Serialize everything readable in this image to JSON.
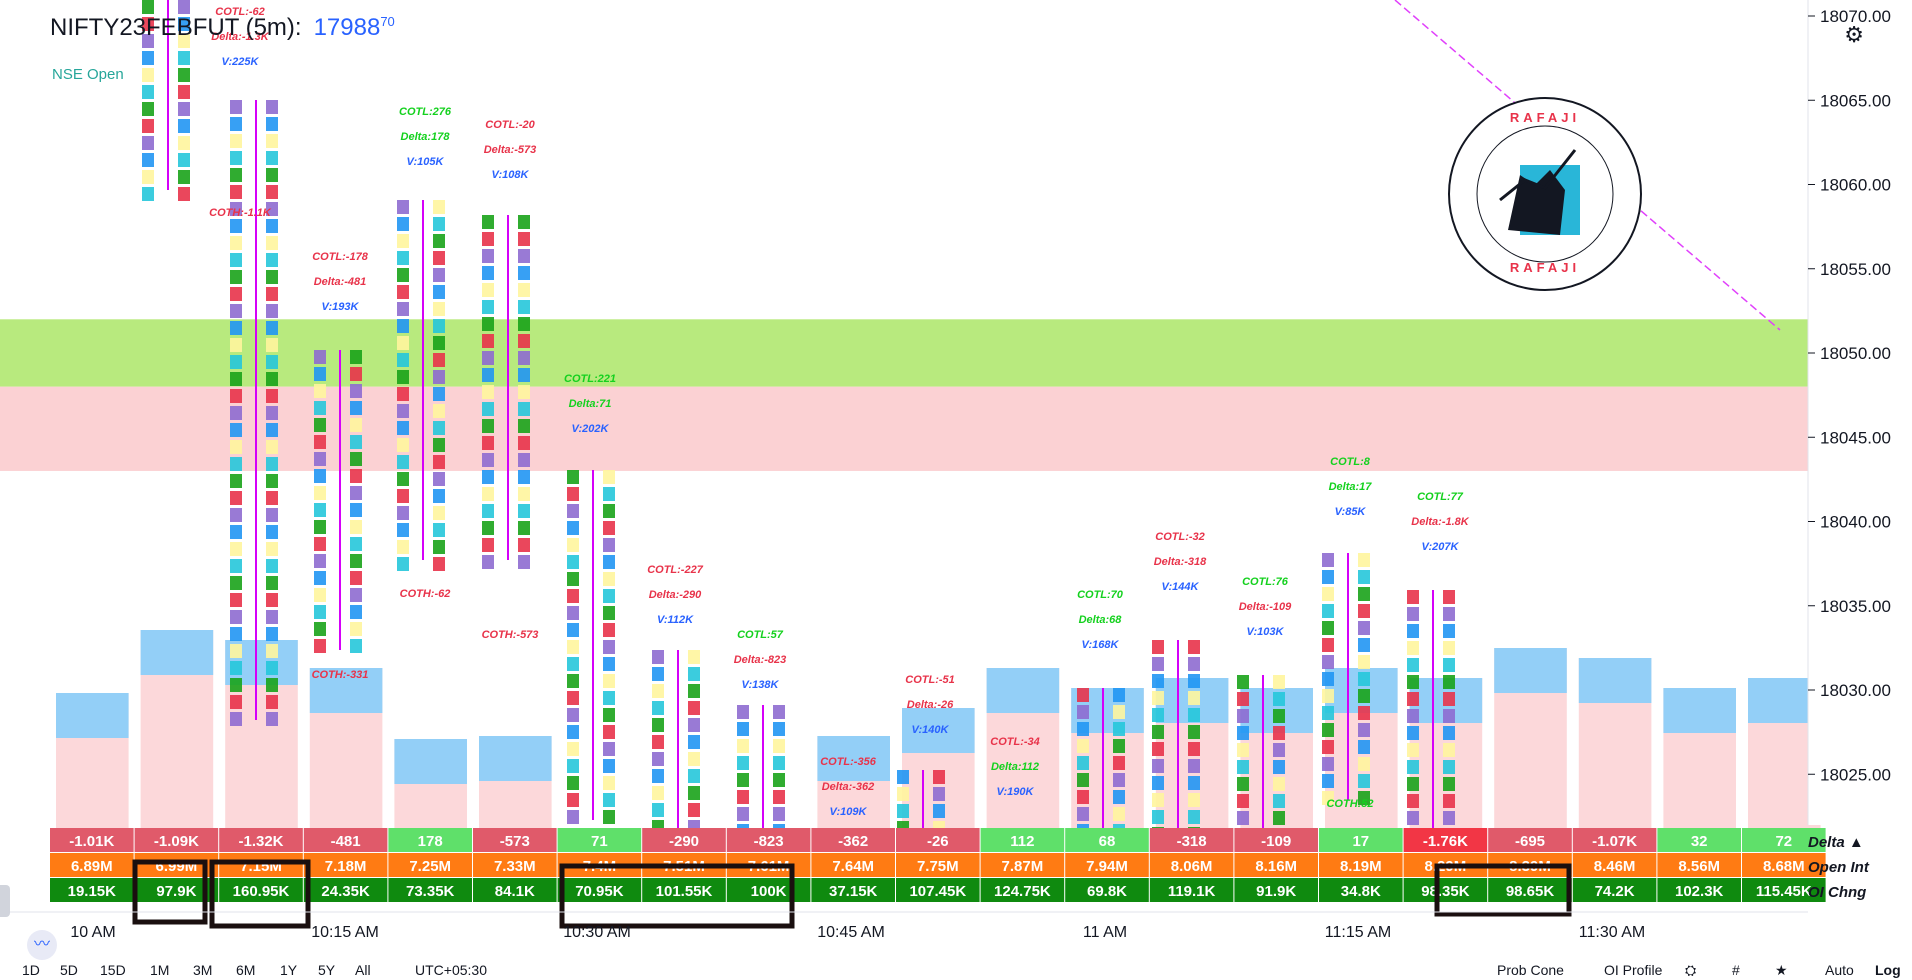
{
  "header": {
    "symbol": "NIFTY23FEBFUT (5m):",
    "last_price": "17988",
    "last_price_fraction": "70",
    "exchange_status": "NSE Open"
  },
  "colors": {
    "up": "#1aa31a",
    "down": "#e8334a",
    "value_area": "#87cefa",
    "delta_text_pos": "#14d11e",
    "delta_text_neg": "#e8334a",
    "volume_text": "#2962ff",
    "green_zone": "#b8ea7e",
    "red_zone": "#fbd1d3"
  },
  "chart_data": {
    "type": "table",
    "price_axis": [
      "18070.00",
      "18065.00",
      "18060.00",
      "18055.00",
      "18050.00",
      "18045.00",
      "18040.00",
      "18035.00",
      "18030.00",
      "18025.00"
    ],
    "time_axis": [
      "10 AM",
      "10:15 AM",
      "10:30 AM",
      "10:45 AM",
      "11 AM",
      "11:15 AM",
      "11:30 AM"
    ],
    "row_labels": [
      "Delta ▲",
      "Open Int",
      "OI Chng"
    ],
    "delta": [
      "-1.01K",
      "-1.09K",
      "-1.32K",
      "-481",
      "178",
      "-573",
      "71",
      "-290",
      "-823",
      "-362",
      "-26",
      "112",
      "68",
      "-318",
      "-109",
      "17",
      "-1.76K",
      "-695",
      "-1.07K",
      "32",
      "72"
    ],
    "open_int": [
      "6.89M",
      "6.99M",
      "7.15M",
      "7.18M",
      "7.25M",
      "7.33M",
      "7.4M",
      "7.51M",
      "7.61M",
      "7.64M",
      "7.75M",
      "7.87M",
      "7.94M",
      "8.06M",
      "8.16M",
      "8.19M",
      "8.29M",
      "8.39M",
      "8.46M",
      "8.56M",
      "8.68M"
    ],
    "oi_change": [
      "19.15K",
      "97.9K",
      "160.95K",
      "24.35K",
      "73.35K",
      "84.1K",
      "70.95K",
      "101.55K",
      "100K",
      "37.15K",
      "107.45K",
      "124.75K",
      "69.8K",
      "119.1K",
      "91.9K",
      "34.8K",
      "98.35K",
      "98.65K",
      "74.2K",
      "102.3K",
      "115.45K"
    ],
    "candle_stats": [
      {
        "cotl": "COTL:-62",
        "delta": "Delta:-1.3K",
        "vol": "V:225K",
        "coth": "COTH:-1.1K"
      },
      {
        "cotl": "COTL:-178",
        "delta": "Delta:-481",
        "vol": "V:193K",
        "coth": "COTH:-331"
      },
      {
        "cotl": "COTL:276",
        "delta": "Delta:178",
        "vol": "V:105K",
        "coth": "COTH:-62"
      },
      {
        "cotl": "COTL:-20",
        "delta": "Delta:-573",
        "vol": "V:108K",
        "coth": "COTH:-573"
      },
      {
        "cotl": "COTL:221",
        "delta": "Delta:71",
        "vol": "V:202K",
        "coth": ""
      },
      {
        "cotl": "COTL:-227",
        "delta": "Delta:-290",
        "vol": "V:112K",
        "coth": ""
      },
      {
        "cotl": "COTL:57",
        "delta": "Delta:-823",
        "vol": "V:138K",
        "coth": ""
      },
      {
        "cotl": "COTL:-356",
        "delta": "Delta:-362",
        "vol": "V:109K",
        "coth": ""
      },
      {
        "cotl": "COTL:-51",
        "delta": "Delta:-26",
        "vol": "V:140K",
        "coth": ""
      },
      {
        "cotl": "COTL:-34",
        "delta": "Delta:112",
        "vol": "V:190K",
        "coth": ""
      },
      {
        "cotl": "COTL:70",
        "delta": "Delta:68",
        "vol": "V:168K",
        "coth": ""
      },
      {
        "cotl": "COTL:-32",
        "delta": "Delta:-318",
        "vol": "V:144K",
        "coth": ""
      },
      {
        "cotl": "COTL:76",
        "delta": "Delta:-109",
        "vol": "V:103K",
        "coth": ""
      },
      {
        "cotl": "COTL:8",
        "delta": "Delta:17",
        "vol": "V:85K",
        "coth": "COTH:52"
      },
      {
        "cotl": "COTL:77",
        "delta": "Delta:-1.8K",
        "vol": "V:207K",
        "coth": ""
      }
    ]
  },
  "logo_text": "RAFAJI",
  "toolbar": {
    "ranges": [
      "1D",
      "5D",
      "15D",
      "1M",
      "3M",
      "6M",
      "1Y",
      "5Y",
      "All"
    ],
    "timezone": "UTC+05:30",
    "prob_cone": "Prob Cone",
    "oi_profile": "OI Profile",
    "auto": "Auto",
    "log": "Log"
  }
}
